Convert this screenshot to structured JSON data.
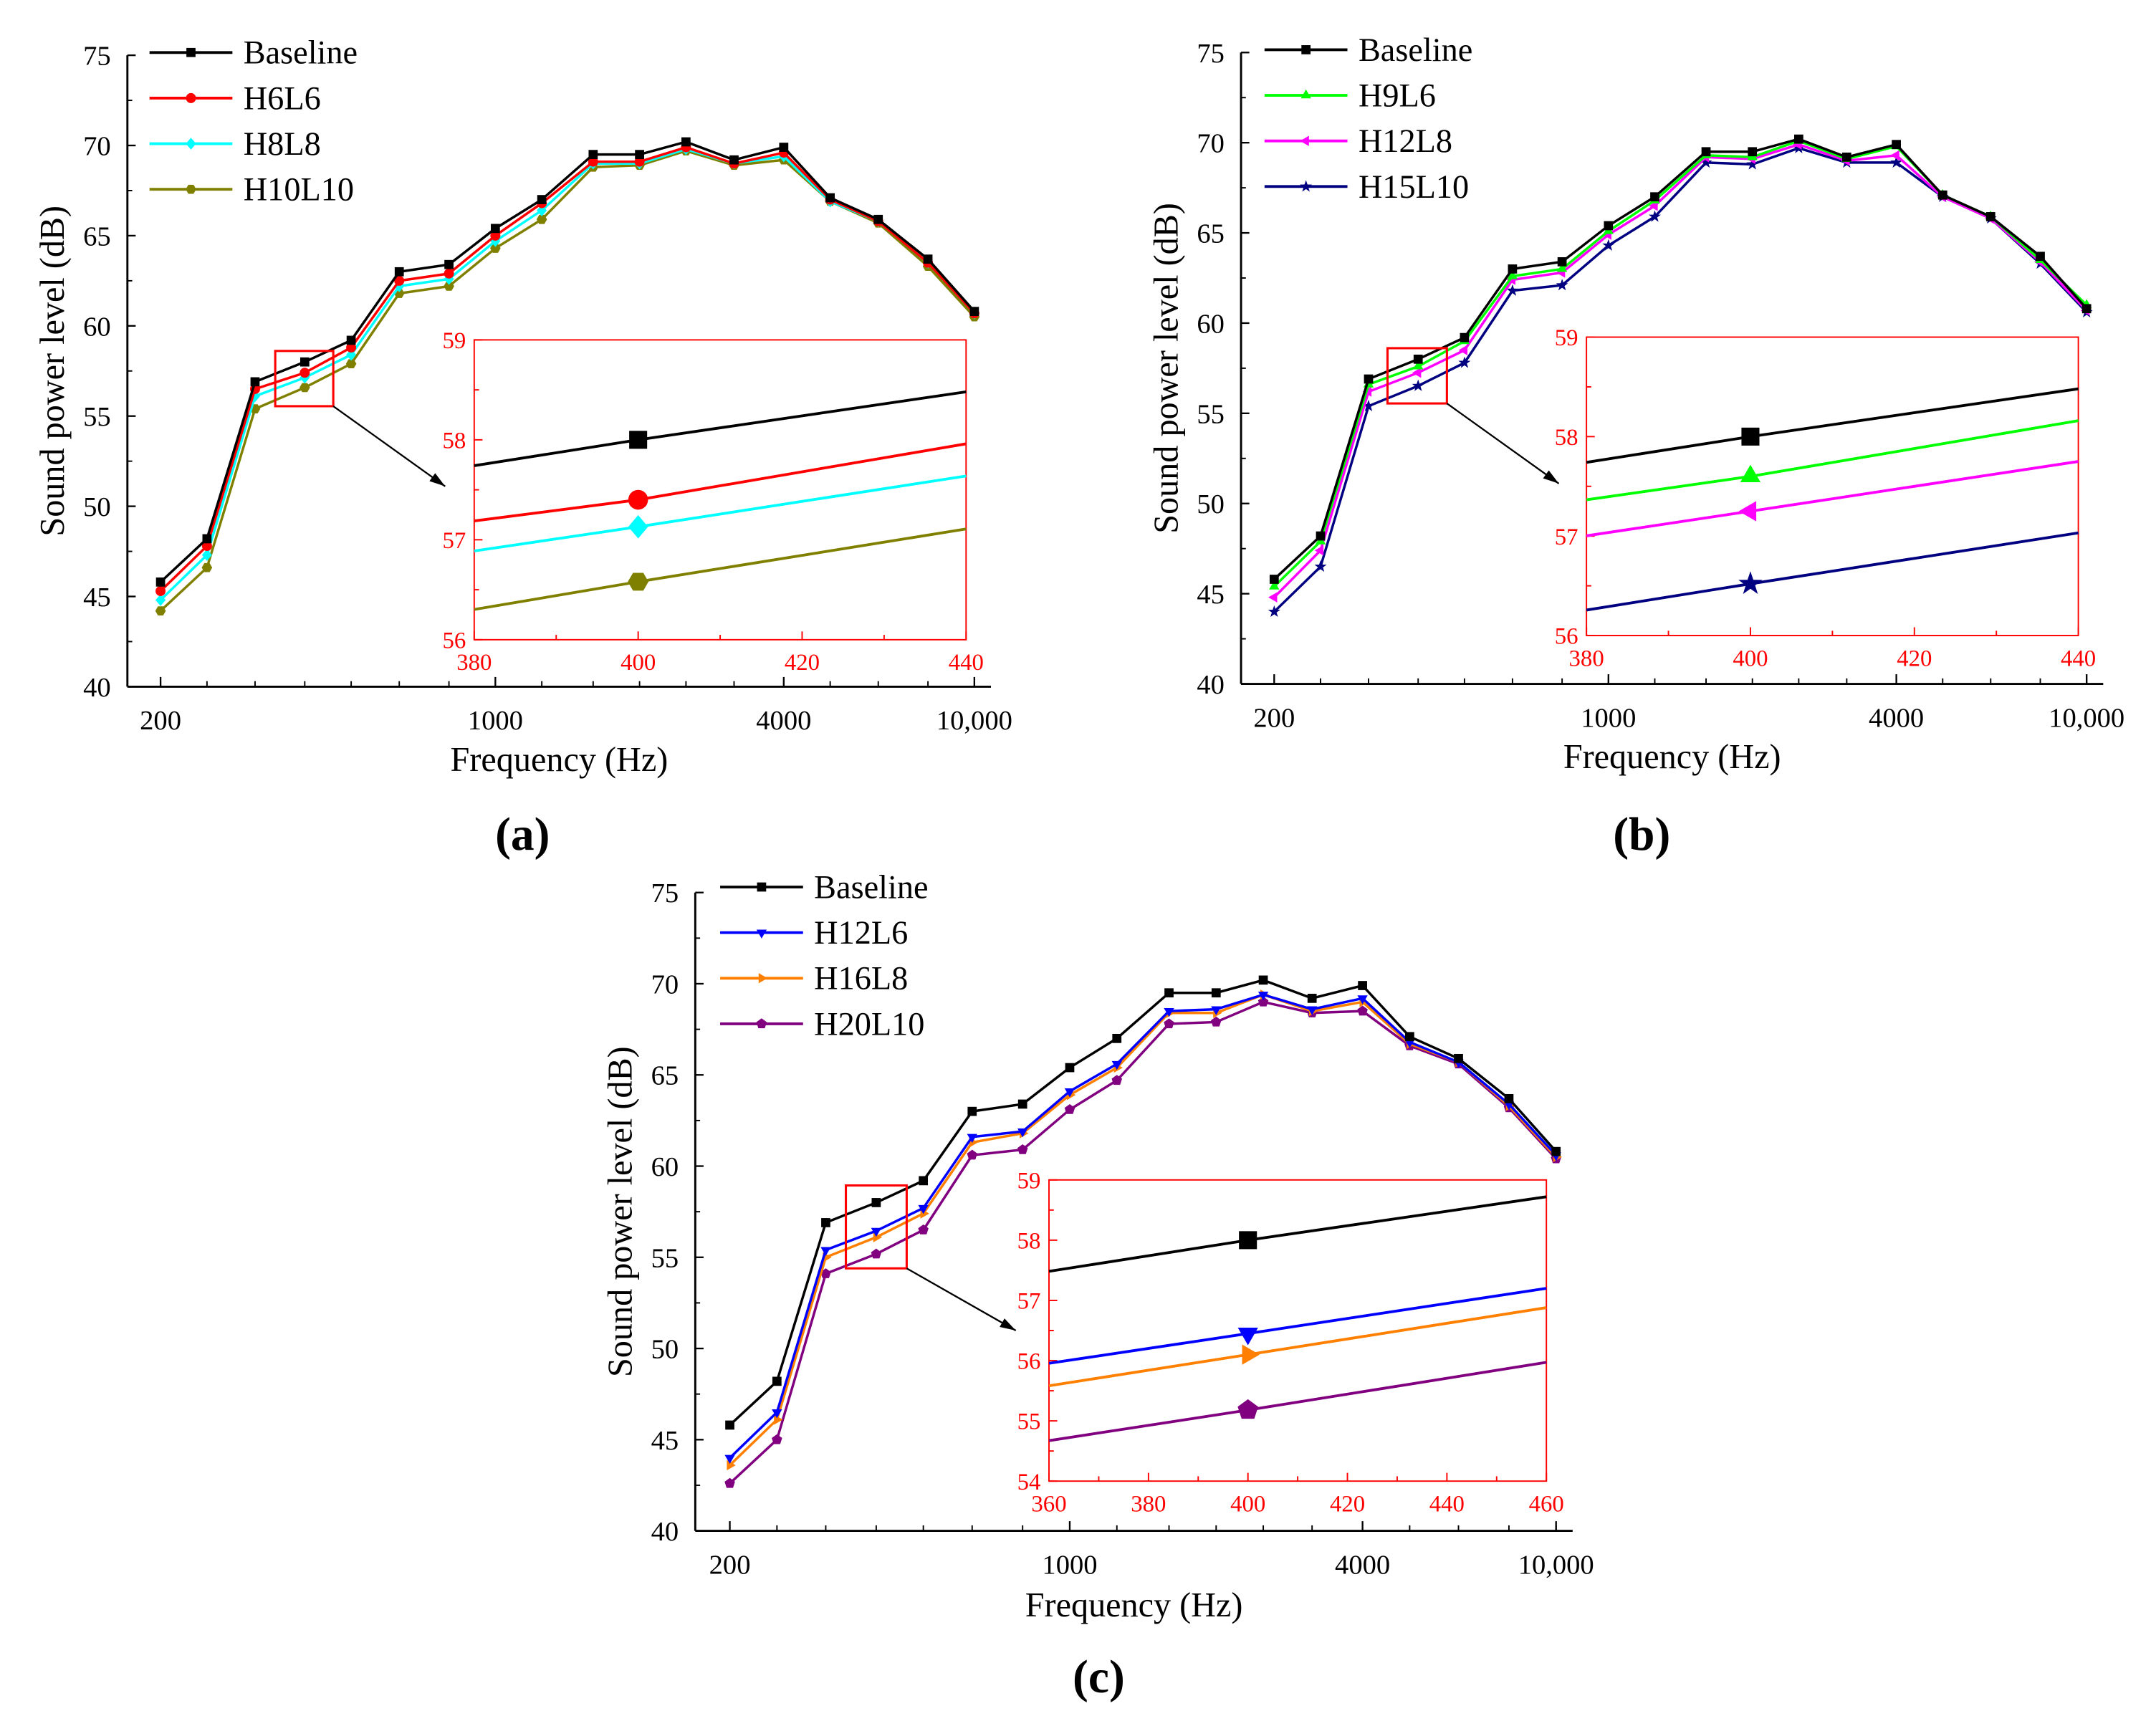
{
  "chart_data": [
    {
      "panel_label": "(a)",
      "type": "line",
      "xlabel": "Frequency (Hz)",
      "ylabel": "Sound power level (dB)",
      "xscale": "log",
      "xticks": [
        200,
        1000,
        4000,
        10000
      ],
      "xtick_labels": [
        "200",
        "1000",
        "4000",
        "10,000"
      ],
      "ylim": [
        40,
        75
      ],
      "yticks": [
        40,
        45,
        50,
        55,
        60,
        65,
        70,
        75
      ],
      "legend_position": "top-left",
      "x": [
        200,
        250,
        315,
        400,
        500,
        630,
        800,
        1000,
        1250,
        1600,
        2000,
        2500,
        3150,
        4000,
        5000,
        6300,
        8000,
        10000
      ],
      "series": [
        {
          "name": "Baseline",
          "color": "#000000",
          "marker": "square",
          "values": [
            45.8,
            48.2,
            56.9,
            58.0,
            59.2,
            63.0,
            63.4,
            65.4,
            67.0,
            69.5,
            69.5,
            70.2,
            69.2,
            69.9,
            67.1,
            65.9,
            63.7,
            60.8
          ]
        },
        {
          "name": "H6L6",
          "color": "#ff0000",
          "marker": "circle",
          "values": [
            45.3,
            47.8,
            56.5,
            57.4,
            58.8,
            62.5,
            62.9,
            65.0,
            66.8,
            69.1,
            69.1,
            69.9,
            69.0,
            69.6,
            67.0,
            65.8,
            63.5,
            60.7
          ]
        },
        {
          "name": "H8L8",
          "color": "#00ffff",
          "marker": "diamond",
          "values": [
            44.8,
            47.3,
            56.1,
            57.13,
            58.4,
            62.2,
            62.6,
            64.7,
            66.4,
            69.0,
            69.0,
            69.8,
            69.0,
            69.4,
            66.9,
            65.8,
            63.5,
            60.7
          ]
        },
        {
          "name": "H10L10",
          "color": "#808000",
          "marker": "hexagon",
          "values": [
            44.2,
            46.6,
            55.4,
            56.58,
            57.9,
            61.8,
            62.2,
            64.3,
            65.9,
            68.8,
            68.9,
            69.7,
            68.9,
            69.2,
            66.9,
            65.7,
            63.3,
            60.5
          ]
        }
      ],
      "inset": {
        "xlim": [
          380,
          440
        ],
        "ylim": [
          56,
          59
        ],
        "xticks": [
          380,
          400,
          420,
          440
        ],
        "yticks": [
          56,
          57,
          58,
          59
        ],
        "highlight_x": 400,
        "color": "#ff0000"
      }
    },
    {
      "panel_label": "(b)",
      "type": "line",
      "xlabel": "Frequency (Hz)",
      "ylabel": "Sound power level (dB)",
      "xscale": "log",
      "xticks": [
        200,
        1000,
        4000,
        10000
      ],
      "xtick_labels": [
        "200",
        "1000",
        "4000",
        "10,000"
      ],
      "ylim": [
        40,
        75
      ],
      "yticks": [
        40,
        45,
        50,
        55,
        60,
        65,
        70,
        75
      ],
      "legend_position": "top-left",
      "x": [
        200,
        250,
        315,
        400,
        500,
        630,
        800,
        1000,
        1250,
        1600,
        2000,
        2500,
        3150,
        4000,
        5000,
        6300,
        8000,
        10000
      ],
      "series": [
        {
          "name": "Baseline",
          "color": "#000000",
          "marker": "square",
          "values": [
            45.8,
            48.2,
            56.9,
            58.0,
            59.2,
            63.0,
            63.4,
            65.4,
            67.0,
            69.5,
            69.5,
            70.2,
            69.2,
            69.9,
            67.1,
            65.9,
            63.7,
            60.8
          ]
        },
        {
          "name": "H9L6",
          "color": "#00ff00",
          "marker": "triangle-up",
          "values": [
            45.4,
            47.9,
            56.6,
            57.6,
            59.0,
            62.6,
            63.0,
            65.1,
            66.8,
            69.3,
            69.2,
            70.1,
            69.1,
            69.8,
            67.1,
            65.9,
            63.5,
            61.0
          ]
        },
        {
          "name": "H12L8",
          "color": "#ff00ff",
          "marker": "triangle-left",
          "values": [
            44.8,
            47.4,
            56.2,
            57.25,
            58.5,
            62.4,
            62.8,
            64.9,
            66.5,
            69.2,
            69.1,
            69.9,
            69.0,
            69.3,
            67.0,
            65.8,
            63.4,
            60.7
          ]
        },
        {
          "name": "H15L10",
          "color": "#000080",
          "marker": "star",
          "values": [
            44.0,
            46.5,
            55.4,
            56.52,
            57.8,
            61.8,
            62.1,
            64.3,
            65.9,
            68.9,
            68.8,
            69.7,
            68.9,
            68.9,
            67.0,
            65.8,
            63.3,
            60.6
          ]
        }
      ],
      "inset": {
        "xlim": [
          380,
          440
        ],
        "ylim": [
          56,
          59
        ],
        "xticks": [
          380,
          400,
          420,
          440
        ],
        "yticks": [
          56,
          57,
          58,
          59
        ],
        "highlight_x": 400,
        "color": "#ff0000"
      }
    },
    {
      "panel_label": "(c)",
      "type": "line",
      "xlabel": "Frequency (Hz)",
      "ylabel": "Sound power level (dB)",
      "xscale": "log",
      "xticks": [
        200,
        1000,
        4000,
        10000
      ],
      "xtick_labels": [
        "200",
        "1000",
        "4000",
        "10,000"
      ],
      "ylim": [
        40,
        75
      ],
      "yticks": [
        40,
        45,
        50,
        55,
        60,
        65,
        70,
        75
      ],
      "legend_position": "top-left",
      "x": [
        200,
        250,
        315,
        400,
        500,
        630,
        800,
        1000,
        1250,
        1600,
        2000,
        2500,
        3150,
        4000,
        5000,
        6300,
        8000,
        10000
      ],
      "series": [
        {
          "name": "Baseline",
          "color": "#000000",
          "marker": "square",
          "values": [
            45.8,
            48.2,
            56.9,
            58.0,
            59.2,
            63.0,
            63.4,
            65.4,
            67.0,
            69.5,
            69.5,
            70.2,
            69.2,
            69.9,
            67.1,
            65.9,
            63.7,
            60.8
          ]
        },
        {
          "name": "H12L6",
          "color": "#0000ff",
          "marker": "triangle-down",
          "values": [
            44.0,
            46.5,
            55.4,
            56.45,
            57.7,
            61.6,
            61.9,
            64.1,
            65.6,
            68.5,
            68.6,
            69.4,
            68.6,
            69.2,
            66.8,
            65.7,
            63.4,
            60.6
          ]
        },
        {
          "name": "H16L8",
          "color": "#ff8000",
          "marker": "triangle-right",
          "values": [
            43.6,
            46.1,
            55.0,
            56.1,
            57.4,
            61.3,
            61.8,
            63.9,
            65.4,
            68.4,
            68.4,
            69.4,
            68.5,
            69.0,
            66.7,
            65.7,
            63.3,
            60.5
          ]
        },
        {
          "name": "H20L10",
          "color": "#800080",
          "marker": "pentagon",
          "values": [
            42.6,
            45.0,
            54.1,
            55.18,
            56.5,
            60.6,
            60.9,
            63.1,
            64.7,
            67.8,
            67.9,
            69.0,
            68.4,
            68.5,
            66.6,
            65.6,
            63.2,
            60.4
          ]
        }
      ],
      "inset": {
        "xlim": [
          360,
          460
        ],
        "ylim": [
          54,
          59
        ],
        "xticks": [
          360,
          380,
          400,
          420,
          440,
          460
        ],
        "yticks": [
          54,
          55,
          56,
          57,
          58,
          59
        ],
        "highlight_x": 400,
        "color": "#ff0000"
      }
    }
  ]
}
